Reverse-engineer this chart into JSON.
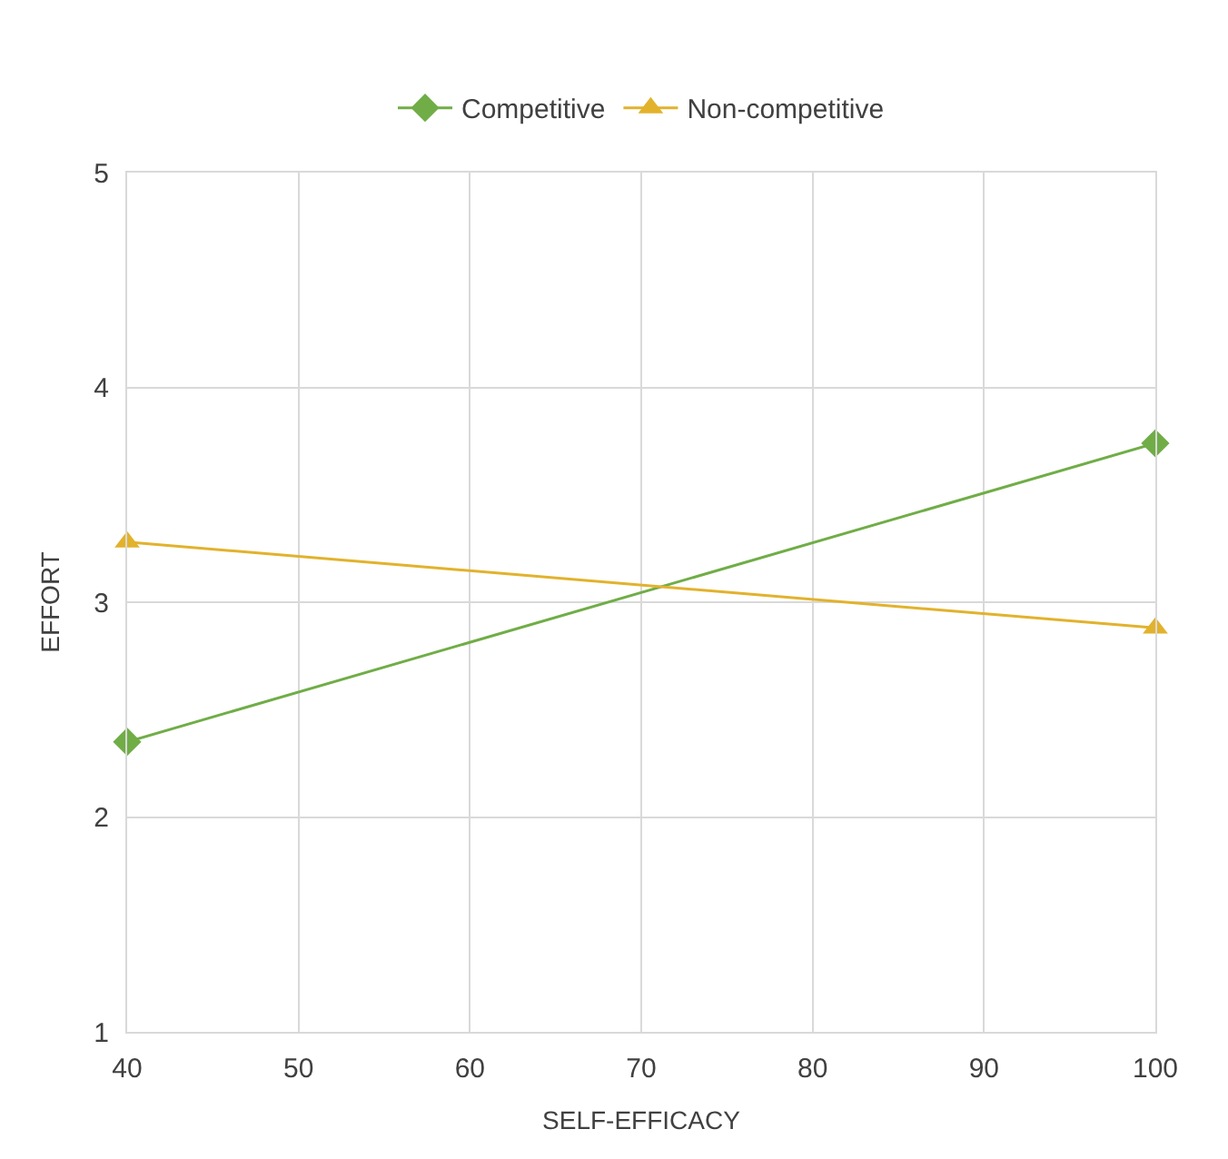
{
  "chart_data": {
    "type": "line",
    "xlabel": "SELF-EFFICACY",
    "ylabel": "EFFORT",
    "x": [
      40,
      100
    ],
    "series": [
      {
        "name": "Competitive",
        "color": "#70ad47",
        "marker": "diamond",
        "values": [
          2.35,
          3.74
        ]
      },
      {
        "name": "Non-competitive",
        "color": "#e2b22c",
        "marker": "triangle",
        "values": [
          3.28,
          2.88
        ]
      }
    ],
    "xlim": [
      40,
      100
    ],
    "xticks": [
      40,
      50,
      60,
      70,
      80,
      90,
      100
    ],
    "ylim": [
      1,
      5
    ],
    "yticks": [
      1,
      2,
      3,
      4,
      5
    ],
    "grid": true,
    "legend": "top"
  }
}
